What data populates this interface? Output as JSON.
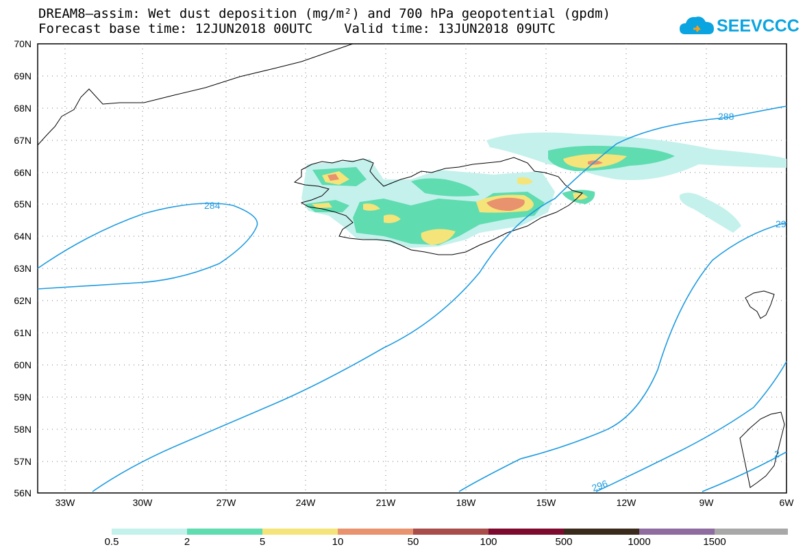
{
  "title_line1": "DREAM8–assim: Wet dust deposition (mg/m²) and 700 hPa geopotential (gpdm)",
  "title_line2": "Forecast base time: 12JUN2018 00UTC    Valid time: 13JUN2018 09UTC",
  "logo_text": "SEEVCCC",
  "lat_labels": [
    "70N",
    "69N",
    "68N",
    "67N",
    "66N",
    "65N",
    "64N",
    "63N",
    "62N",
    "61N",
    "60N",
    "59N",
    "58N",
    "57N",
    "56N"
  ],
  "lon_labels": [
    "33W",
    "30W",
    "27W",
    "24W",
    "21W",
    "18W",
    "15W",
    "12W",
    "9W",
    "6W"
  ],
  "contour_labels": [
    "284",
    "288",
    "296",
    "29",
    "2"
  ],
  "colorbar": {
    "colors": [
      "#c4f1ec",
      "#5fdcb0",
      "#f4e47a",
      "#e8926e",
      "#a84d4a",
      "#7d0a2e",
      "#3a2a1c",
      "#8e6ca0",
      "#a8a8a8"
    ],
    "labels": [
      "0.5",
      "2",
      "5",
      "10",
      "50",
      "100",
      "500",
      "1000",
      "1500"
    ]
  },
  "contour_color": "#1e9be0"
}
